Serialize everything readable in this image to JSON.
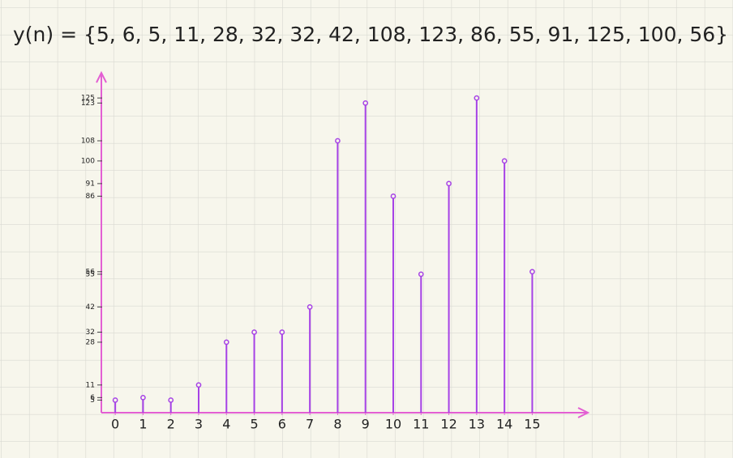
{
  "chart_data": {
    "type": "stem",
    "title": "y(n) = {5, 6, 5, 11, 28, 32, 32, 42, 108, 123, 86, 55, 91, 125, 100, 56}",
    "x": [
      0,
      1,
      2,
      3,
      4,
      5,
      6,
      7,
      8,
      9,
      10,
      11,
      12,
      13,
      14,
      15
    ],
    "values": [
      5,
      6,
      5,
      11,
      28,
      32,
      32,
      42,
      108,
      123,
      86,
      55,
      91,
      125,
      100,
      56
    ],
    "color": "#a642e6",
    "axis_color": "#e35fd3",
    "xlim": [
      -0.5,
      17
    ],
    "xticks": [
      0,
      1,
      2,
      3,
      4,
      5,
      6,
      7,
      8,
      9,
      10,
      11,
      12,
      13,
      14,
      15
    ],
    "ylim": [
      0,
      135
    ],
    "yticks": [
      5,
      6,
      11,
      28,
      32,
      42,
      55,
      56,
      86,
      91,
      100,
      108,
      123,
      125
    ],
    "grid": true
  }
}
